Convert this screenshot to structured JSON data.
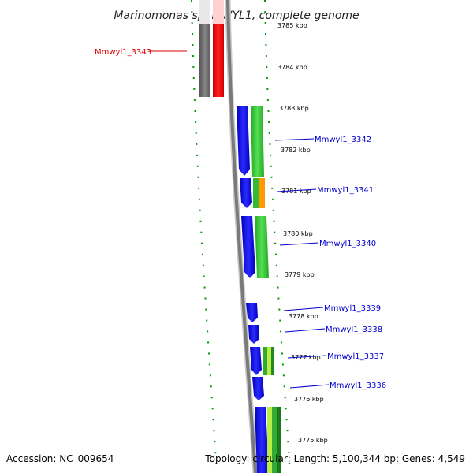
{
  "title": "Marinomonas sp. MWYL1, complete genome",
  "accession": "Accession: NC_009654",
  "topology": "Topology: circular; Length: 5,100,344 bp; Genes: 4,549",
  "scale_labels": [
    "3785 kbp",
    "3784 kbp",
    "3783 kbp",
    "3782 kbp",
    "3781 kbp",
    "3780 kbp",
    "3779 kbp",
    "3778 kbp",
    "3777 kbp",
    "3776 kbp",
    "3775 kbp"
  ],
  "gene_labels": [
    "Mmwyl1_3343",
    "Mmwyl1_3342",
    "Mmwyl1_3341",
    "Mmwyl1_3340",
    "Mmwyl1_3339",
    "Mmwyl1_3338",
    "Mmwyl1_3337",
    "Mmwyl1_3336"
  ],
  "colors": {
    "forward_cds": "#0000ee",
    "function_green": "#33cc33",
    "function_gray": "#777777",
    "function_red": "#ff0000",
    "function_orange": "#ff9900",
    "function_lime": "#aaee33",
    "backbone": "#808080",
    "tick_green": "#009900",
    "label_red": "#e00000",
    "label_blue": "#0000cc"
  }
}
